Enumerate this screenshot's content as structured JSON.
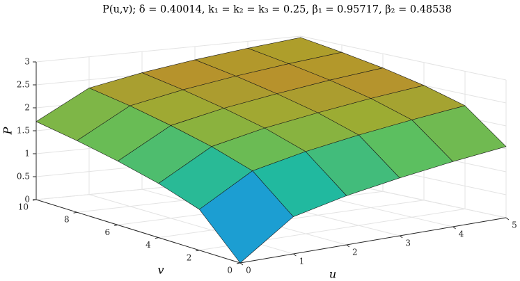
{
  "chart_data": {
    "type": "surface",
    "title": "P(u,v); δ = 0.40014, k₁ = k₂ = k₃ = 0.25, β₁ = 0.95717, β₂ = 0.48538",
    "xlabel": "u",
    "ylabel": "v",
    "zlabel": "P",
    "x": [
      0,
      1,
      2,
      3,
      4,
      5
    ],
    "y": [
      0,
      2,
      4,
      6,
      8,
      10
    ],
    "z": [
      [
        0,
        0.81,
        1.07,
        1.26,
        1.42,
        1.55
      ],
      [
        0.89,
        1.55,
        1.79,
        1.97,
        2.12,
        2.25
      ],
      [
        1.18,
        1.82,
        2.06,
        2.23,
        2.38,
        2.5
      ],
      [
        1.39,
        2.02,
        2.25,
        2.42,
        2.57,
        2.69
      ],
      [
        1.56,
        2.19,
        2.41,
        2.58,
        2.72,
        2.84
      ],
      [
        1.7,
        2.32,
        2.54,
        2.71,
        2.85,
        2.97
      ]
    ],
    "xlim": [
      0,
      5
    ],
    "xticks": [
      0,
      1,
      2,
      3,
      4,
      5
    ],
    "ylim": [
      0,
      10
    ],
    "yticks": [
      0,
      2,
      4,
      6,
      8,
      10
    ],
    "zlim": [
      0,
      3
    ],
    "zticks": [
      0,
      0.5,
      1,
      1.5,
      2,
      2.5,
      3
    ],
    "grid": true,
    "edge_color": "#1a1a1a",
    "colormap": [
      "#3a2bc4",
      "#2a6ee0",
      "#1aa4d0",
      "#1eb9a2",
      "#5fbf5c",
      "#9aae34",
      "#b7922c",
      "#a9a52a"
    ]
  }
}
